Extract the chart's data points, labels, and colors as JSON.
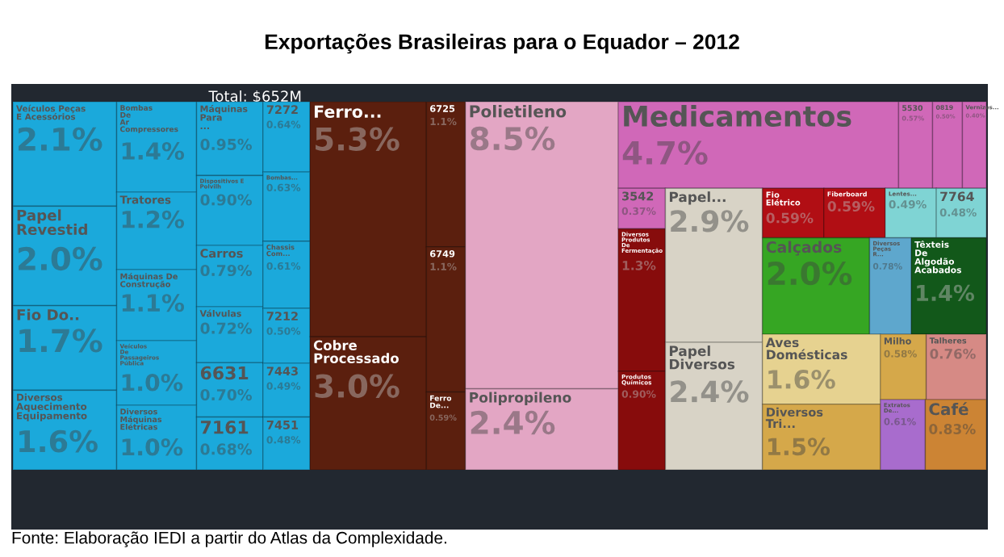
{
  "chart_data": {
    "type": "other",
    "title": "Exportações Brasileiras para o Equador – 2012",
    "annotations": [
      "Total: $652M",
      "Fonte: Elaboração IEDI a partir do Atlas da Complexidade."
    ],
    "categories": [
      "Veículos Peças E Acessórios",
      "Papel Revestid",
      "Fio Do..",
      "Diversos Aquecimento Equipamento",
      "Bombas De Ar Compressores",
      "Tratores",
      "Máquinas De Construção",
      "Veículos De Passageiros Pública",
      "Diversos Máquinas Elétricas",
      "Máquinas Para ...",
      "Dispositivos E Polvilh",
      "Carros",
      "Válvulas",
      "6631",
      "7161",
      "7272",
      "Bombas...",
      "Chassis Com...",
      "7212",
      "7443",
      "7451",
      "Ferro...",
      "Cobre Processado",
      "6725",
      "6749",
      "Ferro De...",
      "Polietileno",
      "Polipropileno",
      "Medicamentos",
      "5530",
      "0819",
      "Vernizes...",
      "3542",
      "Diversos Produtos De Fermentação",
      "Produtos Químicos",
      "Papel...",
      "Papel Diversos",
      "Fio Elétrico",
      "Fiberboard",
      "Lentes...",
      "7764",
      "Calçados",
      "Diversos Peças R...",
      "Têxteis De Algodão Acabados",
      "Aves Domésticas",
      "Diversos Tri...",
      "Milho",
      "Talheres",
      "Extratos De...",
      "Café"
    ],
    "values": [
      2.1,
      2.0,
      1.7,
      1.6,
      1.4,
      1.2,
      1.1,
      1.0,
      1.0,
      0.95,
      0.9,
      0.79,
      0.72,
      0.7,
      0.68,
      0.64,
      0.63,
      0.61,
      0.5,
      0.49,
      0.48,
      5.3,
      3.0,
      1.1,
      1.1,
      0.59,
      8.5,
      2.4,
      4.7,
      0.57,
      0.5,
      0.4,
      0.37,
      1.3,
      0.9,
      2.9,
      2.4,
      0.59,
      0.59,
      0.49,
      0.48,
      2.0,
      0.78,
      1.4,
      1.6,
      1.5,
      0.58,
      0.76,
      0.61,
      0.83
    ],
    "value_labels": [
      "2.1%",
      "2.0%",
      "1.7%",
      "1.6%",
      "1.4%",
      "1.2%",
      "1.1%",
      "1.0%",
      "1.0%",
      "0.95%",
      "0.90%",
      "0.79%",
      "0.72%",
      "0.70%",
      "0.68%",
      "0.64%",
      "0.63%",
      "0.61%",
      "0.50%",
      "0.49%",
      "0.48%",
      "5.3%",
      "3.0%",
      "1.1%",
      "1.1%",
      "0.59%",
      "8.5%",
      "2.4%",
      "4.7%",
      "0.57%",
      "0.50%",
      "0.40%",
      "0.37%",
      "1.3%",
      "0.90%",
      "2.9%",
      "2.4%",
      "0.59%",
      "0.59%",
      "0.49%",
      "0.48%",
      "2.0%",
      "0.78%",
      "1.4%",
      "1.6%",
      "1.5%",
      "0.58%",
      "0.76%",
      "0.61%",
      "0.83%"
    ],
    "colors": [
      "#1ba9db",
      "#1ba9db",
      "#1ba9db",
      "#1ba9db",
      "#1ba9db",
      "#1ba9db",
      "#1ba9db",
      "#1ba9db",
      "#1ba9db",
      "#1ba9db",
      "#1ba9db",
      "#1ba9db",
      "#1ba9db",
      "#1ba9db",
      "#1ba9db",
      "#1ba9db",
      "#1ba9db",
      "#1ba9db",
      "#1ba9db",
      "#1ba9db",
      "#1ba9db",
      "#5b1f0e",
      "#5b1f0e",
      "#5b1f0e",
      "#5b1f0e",
      "#5b1f0e",
      "#e3a6c4",
      "#e3a6c4",
      "#d068b8",
      "#d068b8",
      "#d068b8",
      "#d068b8",
      "#d068b8",
      "#870c0c",
      "#870c0c",
      "#d8d3c6",
      "#d8d3c6",
      "#b10e14",
      "#b10e14",
      "#7fd4d4",
      "#7fd4d4",
      "#36a623",
      "#5ea7cd",
      "#12581a",
      "#e6d290",
      "#d5a84a",
      "#d5a84a",
      "#d68a85",
      "#a86ccd",
      "#cc8434"
    ]
  }
}
